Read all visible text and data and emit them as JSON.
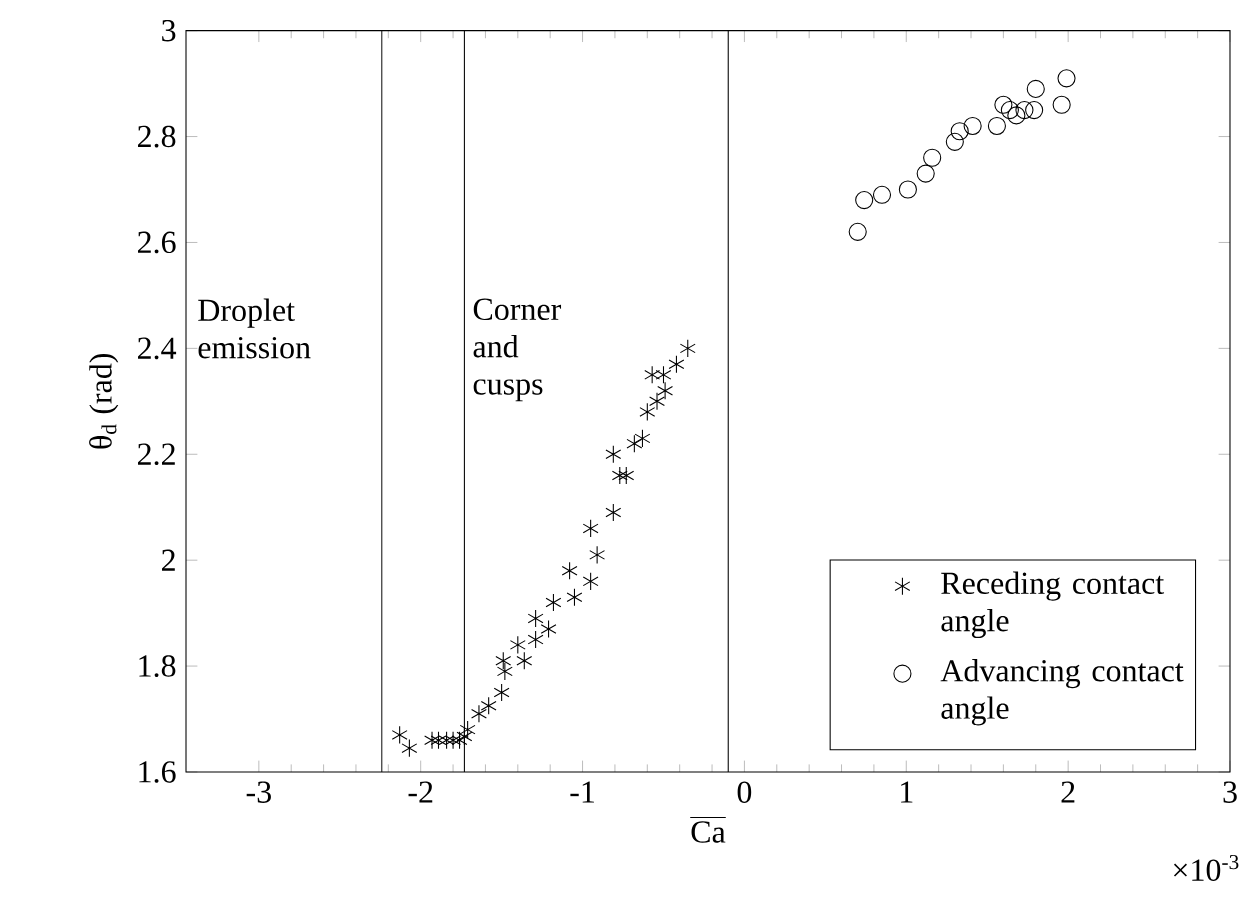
{
  "chart_data": {
    "type": "scatter",
    "xlabel": "\\overline{\\mathrm{Ca}}",
    "ylabel": "θ$_{d}$ (rad)",
    "xlim": [
      -3.45,
      3
    ],
    "ylim": [
      1.6,
      3
    ],
    "xticks": [
      -3,
      -2,
      -1,
      0,
      1,
      2,
      3
    ],
    "yticks": [
      {
        "value": 1.6,
        "label": "1.6"
      },
      {
        "value": 1.8,
        "label": "1.8"
      },
      {
        "value": 2,
        "label": "2"
      },
      {
        "value": 2.2,
        "label": "2.2"
      },
      {
        "value": 2.4,
        "label": "2.4"
      },
      {
        "value": 2.6,
        "label": "2.6"
      },
      {
        "value": 2.8,
        "label": "2.8"
      },
      {
        "value": 3,
        "label": "3"
      }
    ],
    "grid": false,
    "legend": "bottom right",
    "ref_lines": [
      {
        "axis": "x",
        "value": -2.24,
        "label": "Droplet emission",
        "color": "#000000"
      },
      {
        "axis": "x",
        "value": -1.73,
        "label": "Corner and cusps",
        "color": "#000000"
      },
      {
        "axis": "x",
        "value": -0.1,
        "color": "#000000"
      }
    ],
    "annotations": [
      "×10$^{-3}$"
    ],
    "series": [
      {
        "name": "Receding contact angle",
        "color": "#000000",
        "marker": "cross",
        "x": [
          -2.13,
          -2.07,
          -1.93,
          -1.89,
          -1.84,
          -1.8,
          -1.76,
          -1.73,
          -1.71,
          -1.64,
          -1.58,
          -1.5,
          -1.48,
          -1.49,
          -1.36,
          -1.4,
          -1.29,
          -1.29,
          -1.21,
          -1.18,
          -1.05,
          -1.08,
          -0.95,
          -0.91,
          -0.95,
          -0.81,
          -0.77,
          -0.73,
          -0.81,
          -0.68,
          -0.63,
          -0.6,
          -0.54,
          -0.49,
          -0.57,
          -0.5,
          -0.42,
          -0.35
        ],
        "values": [
          1.67,
          1.645,
          1.66,
          1.66,
          1.66,
          1.66,
          1.66,
          1.667,
          1.68,
          1.71,
          1.725,
          1.75,
          1.79,
          1.81,
          1.81,
          1.84,
          1.85,
          1.89,
          1.87,
          1.92,
          1.93,
          1.98,
          1.96,
          2.01,
          2.06,
          2.09,
          2.16,
          2.16,
          2.2,
          2.22,
          2.23,
          2.28,
          2.3,
          2.32,
          2.35,
          2.35,
          2.37,
          2.4
        ]
      },
      {
        "name": "Advancing contact angle",
        "color": "#000000",
        "marker": "circle",
        "x": [
          0.7,
          0.74,
          0.85,
          1.01,
          1.12,
          1.16,
          1.3,
          1.33,
          1.41,
          1.56,
          1.6,
          1.64,
          1.68,
          1.73,
          1.79,
          1.8,
          1.96,
          1.99
        ],
        "values": [
          2.62,
          2.68,
          2.69,
          2.7,
          2.73,
          2.76,
          2.79,
          2.81,
          2.82,
          2.82,
          2.86,
          2.85,
          2.84,
          2.85,
          2.85,
          2.89,
          2.86,
          2.91
        ]
      }
    ]
  }
}
